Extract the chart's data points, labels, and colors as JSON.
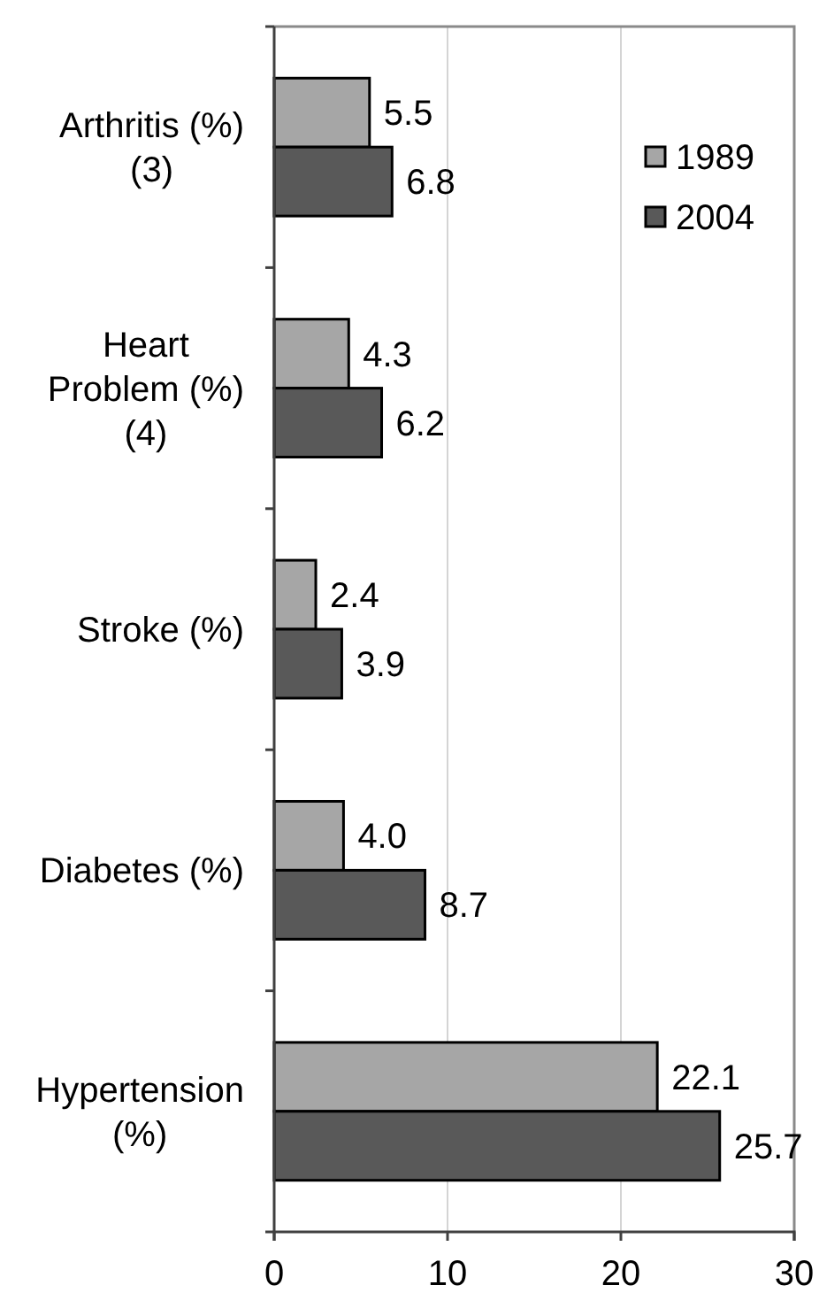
{
  "chart_data": {
    "type": "bar",
    "orientation": "horizontal",
    "categories": [
      "Arthritis (%)\n(3)",
      "Heart\nProblem (%)\n(4)",
      "Stroke (%)",
      "Diabetes (%)",
      "Hypertension\n(%)"
    ],
    "series": [
      {
        "name": "1989",
        "color": "#a6a6a6",
        "values": [
          5.5,
          4.3,
          2.4,
          4.0,
          22.1
        ],
        "value_labels": [
          "5.5",
          "4.3",
          "2.4",
          "4.0",
          "22.1"
        ]
      },
      {
        "name": "2004",
        "color": "#595959",
        "values": [
          6.8,
          6.2,
          3.9,
          8.7,
          25.7
        ],
        "value_labels": [
          "6.8",
          "6.2",
          "3.9",
          "8.7",
          "25.7"
        ]
      }
    ],
    "xlim": [
      0,
      30
    ],
    "xticks": [
      0,
      10,
      20,
      30
    ],
    "grid": "x",
    "legend": "top right"
  }
}
